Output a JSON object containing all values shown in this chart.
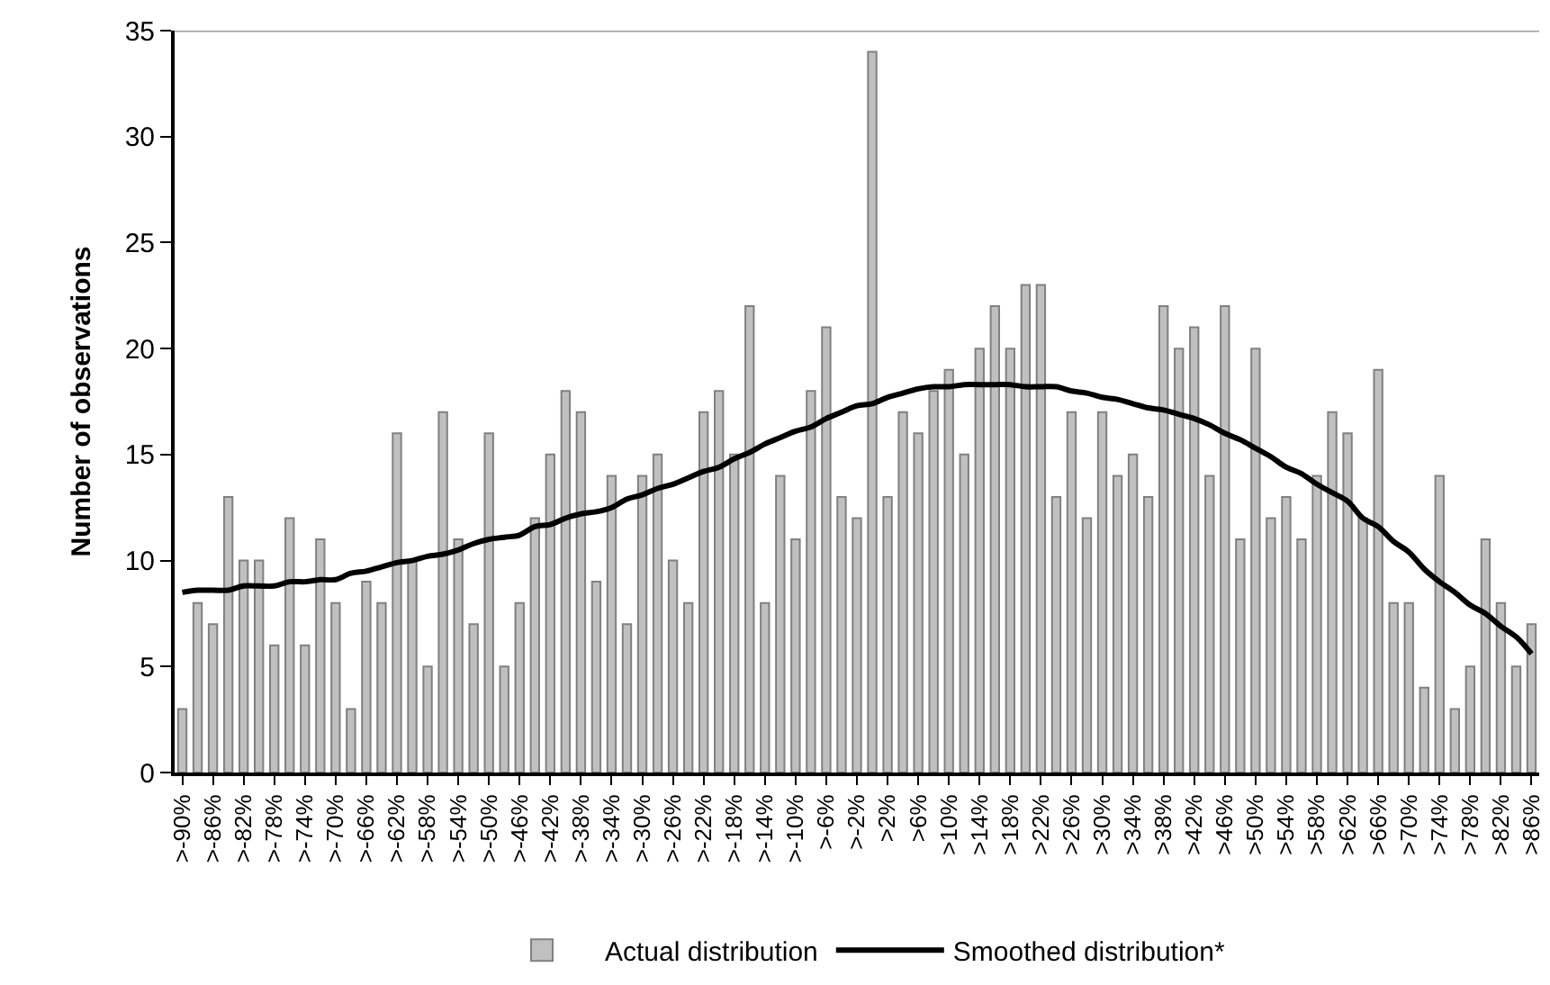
{
  "chart_data": {
    "type": "bar",
    "ylabel": "Number of observations",
    "categories": [
      ">-90%",
      null,
      ">-86%",
      null,
      ">-82%",
      null,
      ">-78%",
      null,
      ">-74%",
      null,
      ">-70%",
      null,
      ">-66%",
      null,
      ">-62%",
      null,
      ">-58%",
      null,
      ">-54%",
      null,
      ">-50%",
      null,
      ">-46%",
      null,
      ">-42%",
      null,
      ">-38%",
      null,
      ">-34%",
      null,
      ">-30%",
      null,
      ">-26%",
      null,
      ">-22%",
      null,
      ">-18%",
      null,
      ">-14%",
      null,
      ">-10%",
      null,
      ">-6%",
      null,
      ">-2%",
      null,
      ">2%",
      null,
      ">6%",
      null,
      ">10%",
      null,
      ">14%",
      null,
      ">18%",
      null,
      ">22%",
      null,
      ">26%",
      null,
      ">30%",
      null,
      ">34%",
      null,
      ">38%",
      null,
      ">42%",
      null,
      ">46%",
      null,
      ">50%",
      null,
      ">54%",
      null,
      ">58%",
      null,
      ">62%",
      null,
      ">66%",
      null,
      ">70%",
      null,
      ">74%",
      null,
      ">78%",
      null,
      ">82%",
      null,
      ">86%"
    ],
    "series": [
      {
        "name": "Actual distribution",
        "color": "#c0c0c0",
        "values": [
          3,
          8,
          7,
          13,
          10,
          10,
          6,
          12,
          6,
          11,
          8,
          3,
          9,
          8,
          16,
          10,
          5,
          17,
          11,
          7,
          16,
          5,
          8,
          12,
          15,
          18,
          17,
          9,
          14,
          7,
          14,
          15,
          10,
          8,
          17,
          18,
          15,
          22,
          8,
          14,
          11,
          18,
          21,
          13,
          12,
          34,
          13,
          17,
          16,
          18,
          19,
          15,
          20,
          22,
          20,
          23,
          23,
          13,
          17,
          12,
          17,
          14,
          15,
          13,
          22,
          20,
          21,
          14,
          22,
          11,
          20,
          12,
          13,
          11,
          14,
          17,
          16,
          12,
          19,
          8,
          8,
          4,
          14,
          3,
          5,
          11,
          8,
          5,
          7
        ]
      },
      {
        "name": "Smoothed distribution*",
        "type": "line",
        "color": "#000000",
        "values": [
          8.5,
          8.6,
          8.6,
          8.6,
          8.8,
          8.8,
          8.8,
          9.0,
          9.0,
          9.1,
          9.1,
          9.4,
          9.5,
          9.7,
          9.9,
          10.0,
          10.2,
          10.3,
          10.5,
          10.8,
          11.0,
          11.1,
          11.2,
          11.6,
          11.7,
          12.0,
          12.2,
          12.3,
          12.5,
          12.9,
          13.1,
          13.4,
          13.6,
          13.9,
          14.2,
          14.4,
          14.8,
          15.1,
          15.5,
          15.8,
          16.1,
          16.3,
          16.7,
          17.0,
          17.3,
          17.4,
          17.7,
          17.9,
          18.1,
          18.2,
          18.2,
          18.3,
          18.3,
          18.3,
          18.3,
          18.2,
          18.2,
          18.2,
          18.0,
          17.9,
          17.7,
          17.6,
          17.4,
          17.2,
          17.1,
          16.9,
          16.7,
          16.4,
          16.0,
          15.7,
          15.3,
          14.9,
          14.4,
          14.1,
          13.6,
          13.2,
          12.8,
          12.0,
          11.6,
          10.9,
          10.4,
          9.6,
          9.0,
          8.5,
          7.9,
          7.5,
          6.9,
          6.4,
          5.6
        ]
      }
    ],
    "ylim": [
      0,
      35
    ],
    "yticks": [
      0,
      5,
      10,
      15,
      20,
      25,
      30,
      35
    ],
    "grid": false,
    "legend": "bottom",
    "marker": "none",
    "line_style": "solid"
  }
}
